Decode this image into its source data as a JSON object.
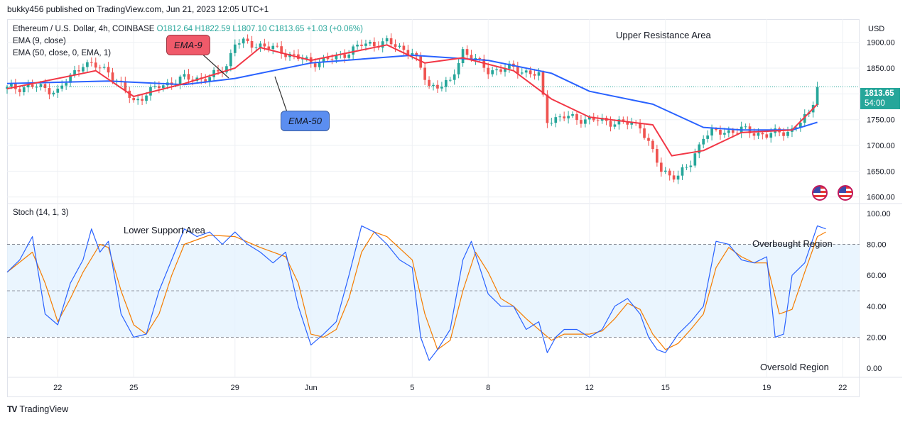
{
  "header": {
    "publisher": "bukky456 published on TradingView.com, Jun 21, 2023 12:05 UTC+1"
  },
  "legend": {
    "symbol": "Ethereum / U.S. Dollar, 4h, COINBASE",
    "ohlc": "O1812.64  H1822.59  L1807.10  C1813.65  +1.03 (+0.06%)",
    "ema9": "EMA (9, close)",
    "ema50": "EMA (50, close, 0, EMA, 1)",
    "stoch": "Stoch (14, 1, 3)"
  },
  "annotations": {
    "upper_resistance": "Upper Resistance Area",
    "lower_support": "Lower Support Area",
    "overbought": "Overbought Region",
    "oversold": "Oversold Region",
    "ema9_callout": "EMA-9",
    "ema50_callout": "EMA-50"
  },
  "price_tag": {
    "price": "1813.65",
    "countdown": "54:00"
  },
  "footer": {
    "brand": "TradingView",
    "logo": "TV"
  },
  "colors": {
    "up": "#26a69a",
    "down": "#ef5350",
    "ema9": "#f23645",
    "ema50": "#2962ff",
    "stoch_k": "#2962ff",
    "stoch_d": "#f57c00",
    "band": "#e3f2fd"
  },
  "chart_data": {
    "type": "candlestick",
    "currency_label": "USD",
    "price_axis": {
      "ticks": [
        1900,
        1850,
        1800,
        1750,
        1700,
        1650,
        1600
      ],
      "tick_labels": [
        "1900.00",
        "1850.00",
        "1800.00",
        "1750.00",
        "1700.00",
        "1650.00",
        "1600.00"
      ],
      "range": [
        1590,
        1945
      ]
    },
    "stoch_axis": {
      "ticks": [
        100,
        80,
        60,
        40,
        20,
        0
      ],
      "tick_labels": [
        "100.00",
        "80.00",
        "60.00",
        "40.00",
        "20.00",
        "0.00"
      ],
      "range": [
        -5,
        105
      ],
      "band": [
        20,
        80
      ],
      "midline": 50
    },
    "x_axis": {
      "range": [
        "2023-05-20T00:00",
        "2023-06-22T16:00"
      ],
      "ticks": [
        "2023-05-22",
        "2023-05-25",
        "2023-05-29",
        "2023-06-01",
        "2023-06-05",
        "2023-06-08",
        "2023-06-12",
        "2023-06-15",
        "2023-06-19",
        "2023-06-22"
      ],
      "tick_labels": [
        "22",
        "25",
        "29",
        "Jun",
        "5",
        "8",
        "12",
        "15",
        "19",
        "22"
      ]
    },
    "last_price": 1813.65,
    "price_anchors": [
      [
        "2023-05-20T00:00",
        1810
      ],
      [
        "2023-05-21T00:00",
        1815
      ],
      [
        "2023-05-22T00:00",
        1805
      ],
      [
        "2023-05-23T00:00",
        1860
      ],
      [
        "2023-05-24T00:00",
        1845
      ],
      [
        "2023-05-25T00:00",
        1785
      ],
      [
        "2023-05-26T00:00",
        1815
      ],
      [
        "2023-05-27T00:00",
        1830
      ],
      [
        "2023-05-28T00:00",
        1830
      ],
      [
        "2023-05-28T16:00",
        1855
      ],
      [
        "2023-05-29T00:00",
        1900
      ],
      [
        "2023-05-30T00:00",
        1895
      ],
      [
        "2023-05-31T00:00",
        1880
      ],
      [
        "2023-06-01T00:00",
        1860
      ],
      [
        "2023-06-02T00:00",
        1870
      ],
      [
        "2023-06-03T00:00",
        1895
      ],
      [
        "2023-06-04T00:00",
        1900
      ],
      [
        "2023-06-05T00:00",
        1880
      ],
      [
        "2023-06-05T16:00",
        1815
      ],
      [
        "2023-06-06T12:00",
        1820
      ],
      [
        "2023-06-07T00:00",
        1885
      ],
      [
        "2023-06-08T00:00",
        1845
      ],
      [
        "2023-06-09T00:00",
        1850
      ],
      [
        "2023-06-10T00:00",
        1835
      ],
      [
        "2023-06-10T08:00",
        1750
      ],
      [
        "2023-06-11T00:00",
        1755
      ],
      [
        "2023-06-12T00:00",
        1750
      ],
      [
        "2023-06-13T00:00",
        1745
      ],
      [
        "2023-06-14T00:00",
        1740
      ],
      [
        "2023-06-14T20:00",
        1650
      ],
      [
        "2023-06-15T12:00",
        1640
      ],
      [
        "2023-06-16T00:00",
        1665
      ],
      [
        "2023-06-16T12:00",
        1720
      ],
      [
        "2023-06-17T00:00",
        1725
      ],
      [
        "2023-06-18T00:00",
        1730
      ],
      [
        "2023-06-19T00:00",
        1720
      ],
      [
        "2023-06-20T00:00",
        1730
      ],
      [
        "2023-06-20T16:00",
        1760
      ],
      [
        "2023-06-21T00:00",
        1813
      ]
    ],
    "ema9": [
      [
        "2023-05-20T00:00",
        1810
      ],
      [
        "2023-05-23T12:00",
        1845
      ],
      [
        "2023-05-25T00:00",
        1795
      ],
      [
        "2023-05-27T00:00",
        1820
      ],
      [
        "2023-05-29T00:00",
        1850
      ],
      [
        "2023-05-30T00:00",
        1890
      ],
      [
        "2023-06-01T00:00",
        1865
      ],
      [
        "2023-06-04T00:00",
        1895
      ],
      [
        "2023-06-05T12:00",
        1860
      ],
      [
        "2023-06-07T00:00",
        1870
      ],
      [
        "2023-06-09T00:00",
        1845
      ],
      [
        "2023-06-10T12:00",
        1790
      ],
      [
        "2023-06-12T00:00",
        1755
      ],
      [
        "2023-06-14T12:00",
        1740
      ],
      [
        "2023-06-15T06:00",
        1680
      ],
      [
        "2023-06-16T12:00",
        1690
      ],
      [
        "2023-06-18T00:00",
        1725
      ],
      [
        "2023-06-20T00:00",
        1730
      ],
      [
        "2023-06-21T00:00",
        1780
      ]
    ],
    "ema50": [
      [
        "2023-05-20T00:00",
        1820
      ],
      [
        "2023-05-24T00:00",
        1825
      ],
      [
        "2023-05-27T00:00",
        1818
      ],
      [
        "2023-05-29T00:00",
        1830
      ],
      [
        "2023-06-01T00:00",
        1860
      ],
      [
        "2023-06-05T00:00",
        1875
      ],
      [
        "2023-06-08T00:00",
        1865
      ],
      [
        "2023-06-10T12:00",
        1840
      ],
      [
        "2023-06-12T00:00",
        1805
      ],
      [
        "2023-06-14T12:00",
        1780
      ],
      [
        "2023-06-16T12:00",
        1735
      ],
      [
        "2023-06-18T00:00",
        1730
      ],
      [
        "2023-06-20T00:00",
        1730
      ],
      [
        "2023-06-21T00:00",
        1745
      ]
    ],
    "stoch_k": [
      [
        "2023-05-20T00:00",
        62
      ],
      [
        "2023-05-20T12:00",
        70
      ],
      [
        "2023-05-21T00:00",
        85
      ],
      [
        "2023-05-21T12:00",
        35
      ],
      [
        "2023-05-22T00:00",
        28
      ],
      [
        "2023-05-22T12:00",
        55
      ],
      [
        "2023-05-23T00:00",
        70
      ],
      [
        "2023-05-23T08:00",
        90
      ],
      [
        "2023-05-23T16:00",
        75
      ],
      [
        "2023-05-24T00:00",
        82
      ],
      [
        "2023-05-24T12:00",
        35
      ],
      [
        "2023-05-25T00:00",
        20
      ],
      [
        "2023-05-25T12:00",
        22
      ],
      [
        "2023-05-26T00:00",
        50
      ],
      [
        "2023-05-26T12:00",
        70
      ],
      [
        "2023-05-27T00:00",
        90
      ],
      [
        "2023-05-27T12:00",
        85
      ],
      [
        "2023-05-28T00:00",
        88
      ],
      [
        "2023-05-28T12:00",
        80
      ],
      [
        "2023-05-29T00:00",
        88
      ],
      [
        "2023-05-29T12:00",
        80
      ],
      [
        "2023-05-30T00:00",
        75
      ],
      [
        "2023-05-30T12:00",
        68
      ],
      [
        "2023-05-31T00:00",
        75
      ],
      [
        "2023-05-31T12:00",
        40
      ],
      [
        "2023-06-01T00:00",
        15
      ],
      [
        "2023-06-01T12:00",
        22
      ],
      [
        "2023-06-02T00:00",
        30
      ],
      [
        "2023-06-02T12:00",
        60
      ],
      [
        "2023-06-03T00:00",
        92
      ],
      [
        "2023-06-03T12:00",
        88
      ],
      [
        "2023-06-04T00:00",
        80
      ],
      [
        "2023-06-04T12:00",
        70
      ],
      [
        "2023-06-05T00:00",
        65
      ],
      [
        "2023-06-05T08:00",
        20
      ],
      [
        "2023-06-05T16:00",
        5
      ],
      [
        "2023-06-06T00:00",
        12
      ],
      [
        "2023-06-06T12:00",
        25
      ],
      [
        "2023-06-07T00:00",
        70
      ],
      [
        "2023-06-07T08:00",
        82
      ],
      [
        "2023-06-07T16:00",
        65
      ],
      [
        "2023-06-08T00:00",
        48
      ],
      [
        "2023-06-08T12:00",
        40
      ],
      [
        "2023-06-09T00:00",
        40
      ],
      [
        "2023-06-09T12:00",
        25
      ],
      [
        "2023-06-10T00:00",
        30
      ],
      [
        "2023-06-10T08:00",
        10
      ],
      [
        "2023-06-10T16:00",
        20
      ],
      [
        "2023-06-11T00:00",
        25
      ],
      [
        "2023-06-11T12:00",
        25
      ],
      [
        "2023-06-12T00:00",
        20
      ],
      [
        "2023-06-12T12:00",
        25
      ],
      [
        "2023-06-13T00:00",
        40
      ],
      [
        "2023-06-13T12:00",
        45
      ],
      [
        "2023-06-14T00:00",
        35
      ],
      [
        "2023-06-14T08:00",
        20
      ],
      [
        "2023-06-14T16:00",
        12
      ],
      [
        "2023-06-15T00:00",
        10
      ],
      [
        "2023-06-15T12:00",
        22
      ],
      [
        "2023-06-16T00:00",
        30
      ],
      [
        "2023-06-16T12:00",
        40
      ],
      [
        "2023-06-17T00:00",
        82
      ],
      [
        "2023-06-17T12:00",
        80
      ],
      [
        "2023-06-18T00:00",
        70
      ],
      [
        "2023-06-18T12:00",
        68
      ],
      [
        "2023-06-19T00:00",
        72
      ],
      [
        "2023-06-19T08:00",
        20
      ],
      [
        "2023-06-19T16:00",
        22
      ],
      [
        "2023-06-20T00:00",
        60
      ],
      [
        "2023-06-20T12:00",
        68
      ],
      [
        "2023-06-21T00:00",
        92
      ],
      [
        "2023-06-21T08:00",
        90
      ]
    ],
    "stoch_d": [
      [
        "2023-05-20T00:00",
        62
      ],
      [
        "2023-05-21T00:00",
        75
      ],
      [
        "2023-05-21T12:00",
        55
      ],
      [
        "2023-05-22T00:00",
        30
      ],
      [
        "2023-05-22T12:00",
        45
      ],
      [
        "2023-05-23T00:00",
        62
      ],
      [
        "2023-05-23T16:00",
        80
      ],
      [
        "2023-05-24T00:00",
        78
      ],
      [
        "2023-05-24T12:00",
        50
      ],
      [
        "2023-05-25T00:00",
        28
      ],
      [
        "2023-05-25T12:00",
        22
      ],
      [
        "2023-05-26T00:00",
        35
      ],
      [
        "2023-05-26T12:00",
        60
      ],
      [
        "2023-05-27T00:00",
        80
      ],
      [
        "2023-05-28T00:00",
        86
      ],
      [
        "2023-05-29T00:00",
        85
      ],
      [
        "2023-05-30T00:00",
        78
      ],
      [
        "2023-05-31T00:00",
        72
      ],
      [
        "2023-05-31T12:00",
        55
      ],
      [
        "2023-06-01T00:00",
        22
      ],
      [
        "2023-06-01T12:00",
        20
      ],
      [
        "2023-06-02T00:00",
        25
      ],
      [
        "2023-06-02T12:00",
        45
      ],
      [
        "2023-06-03T00:00",
        75
      ],
      [
        "2023-06-03T12:00",
        88
      ],
      [
        "2023-06-04T00:00",
        85
      ],
      [
        "2023-06-05T00:00",
        70
      ],
      [
        "2023-06-05T12:00",
        35
      ],
      [
        "2023-06-06T00:00",
        12
      ],
      [
        "2023-06-06T12:00",
        18
      ],
      [
        "2023-06-07T00:00",
        50
      ],
      [
        "2023-06-07T12:00",
        75
      ],
      [
        "2023-06-08T00:00",
        62
      ],
      [
        "2023-06-08T12:00",
        45
      ],
      [
        "2023-06-09T00:00",
        40
      ],
      [
        "2023-06-09T12:00",
        32
      ],
      [
        "2023-06-10T12:00",
        18
      ],
      [
        "2023-06-11T00:00",
        22
      ],
      [
        "2023-06-12T00:00",
        22
      ],
      [
        "2023-06-12T12:00",
        24
      ],
      [
        "2023-06-13T00:00",
        32
      ],
      [
        "2023-06-13T12:00",
        42
      ],
      [
        "2023-06-14T00:00",
        38
      ],
      [
        "2023-06-14T12:00",
        22
      ],
      [
        "2023-06-15T00:00",
        12
      ],
      [
        "2023-06-15T12:00",
        16
      ],
      [
        "2023-06-16T00:00",
        25
      ],
      [
        "2023-06-16T12:00",
        35
      ],
      [
        "2023-06-17T00:00",
        65
      ],
      [
        "2023-06-17T12:00",
        78
      ],
      [
        "2023-06-18T00:00",
        72
      ],
      [
        "2023-06-18T12:00",
        68
      ],
      [
        "2023-06-19T00:00",
        68
      ],
      [
        "2023-06-19T12:00",
        35
      ],
      [
        "2023-06-20T00:00",
        38
      ],
      [
        "2023-06-20T12:00",
        62
      ],
      [
        "2023-06-21T00:00",
        85
      ],
      [
        "2023-06-21T08:00",
        88
      ]
    ]
  }
}
